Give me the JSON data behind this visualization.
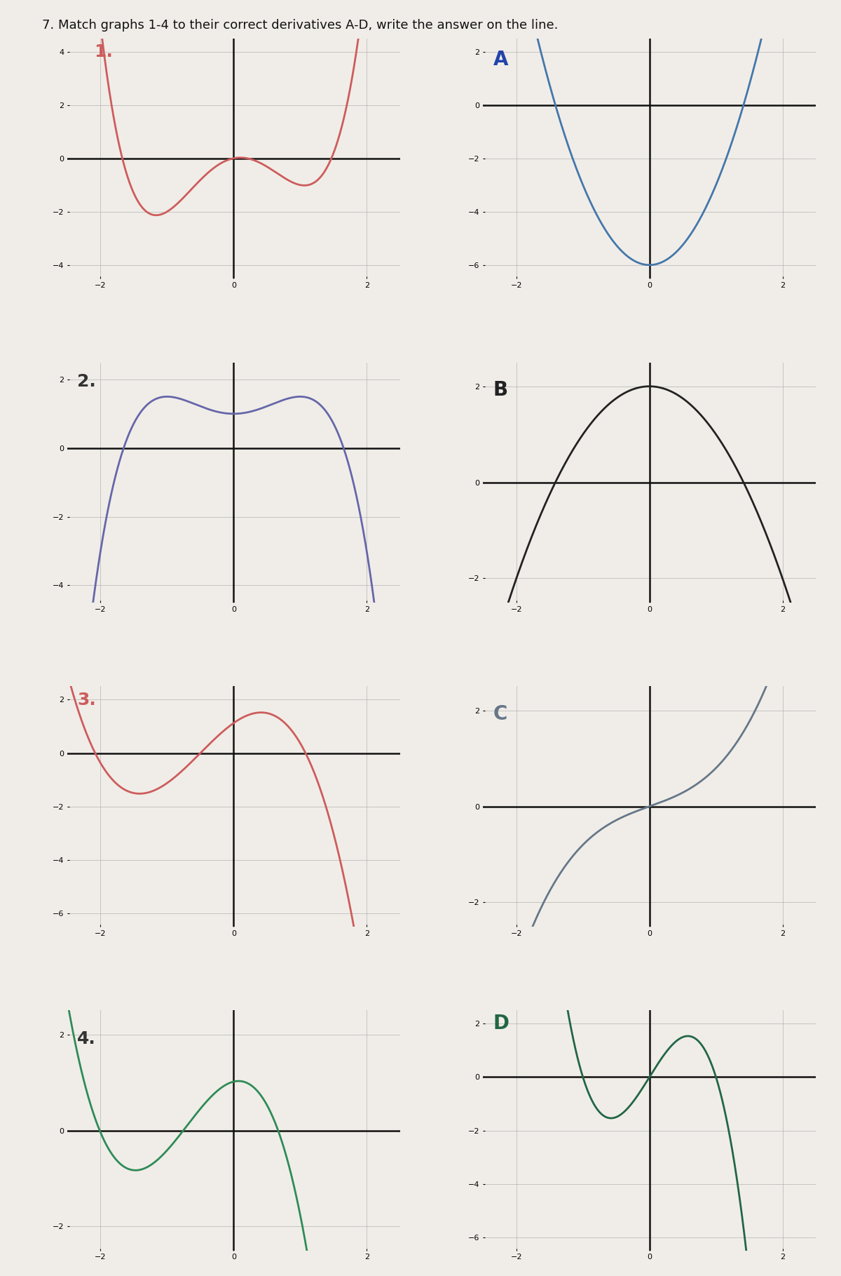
{
  "title": "7. Match graphs 1-4 to their correct derivatives A-D, write the answer on the line.",
  "graph1_color": "#cd5c5c",
  "graph2_color": "#6666aa",
  "graph3_color": "#cd5c5c",
  "graph4_color": "#2e8b57",
  "graphA_color": "#4477aa",
  "graphB_color": "#222222",
  "graphC_color": "#667788",
  "graphD_color": "#226644",
  "label1": "1.",
  "label2": "2.",
  "label3": "3.",
  "label4": "4.",
  "labelA": "A",
  "labelB": "B",
  "labelC": "C",
  "labelD": "D",
  "label1_color": "#cd5c5c",
  "label2_color": "#333333",
  "label3_color": "#cd5c5c",
  "label4_color": "#333333",
  "labelA_color": "#2244aa",
  "labelB_color": "#222222",
  "labelC_color": "#667788",
  "labelD_color": "#226644",
  "bg_color": "#f0ede8",
  "grid_color": "#aaaaaa",
  "axis_color": "#111111"
}
